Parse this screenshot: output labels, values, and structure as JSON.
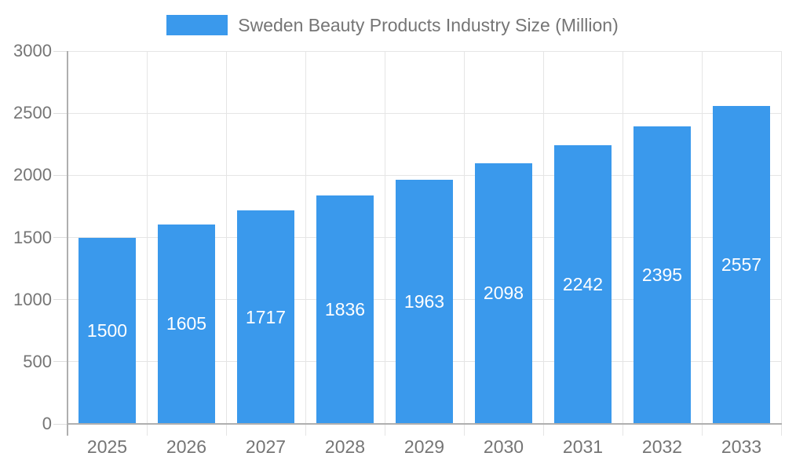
{
  "chart_data": {
    "type": "bar",
    "title": "Sweden Beauty Products Industry Size (Million)",
    "legend": {
      "label": "Sweden Beauty Products Industry Size (Million)",
      "position": "top"
    },
    "categories": [
      "2025",
      "2026",
      "2027",
      "2028",
      "2029",
      "2030",
      "2031",
      "2032",
      "2033"
    ],
    "series": [
      {
        "name": "Sweden Beauty Products Industry Size (Million)",
        "values": [
          1500,
          1605,
          1717,
          1836,
          1963,
          2098,
          2242,
          2395,
          2557
        ],
        "color": "#3A99EC"
      }
    ],
    "xlabel": "",
    "ylabel": "",
    "ylim": [
      0,
      3000
    ],
    "yticks": [
      0,
      500,
      1000,
      1500,
      2000,
      2500,
      3000
    ],
    "grid": true,
    "value_labels": "inside-center",
    "value_label_color": "#FFFFFF"
  },
  "colors": {
    "bar": "#3A99EC",
    "axis_text": "#757575",
    "axis_line": "#AFAFAF",
    "gridline": "#E5E5E5",
    "tick": "#DDDDDD",
    "background": "#FFFFFF"
  }
}
